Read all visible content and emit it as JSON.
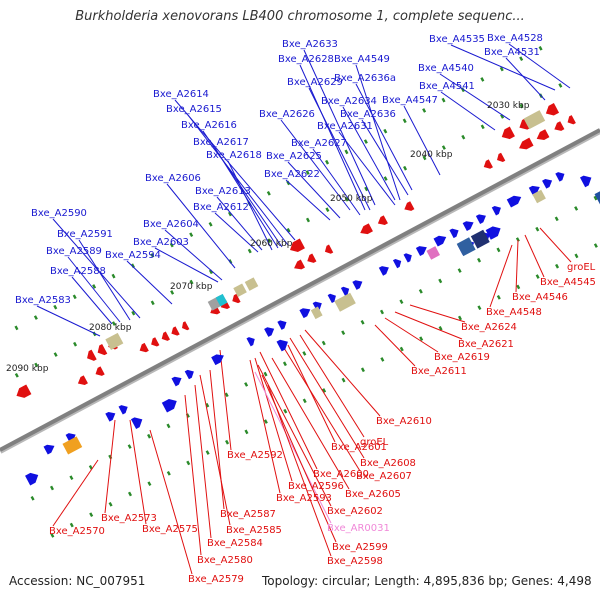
{
  "title": "Burkholderia xenovorans LB400 chromosome 1, complete sequenc...",
  "footer": {
    "accession": "Accession: NC_007951",
    "topology": "Topology: circular; Length: 4,895,836 bp; Genes: 4,498"
  },
  "colors": {
    "forward": "#1010e0",
    "reverse": "#e01010",
    "rrna": "#c8c090",
    "ncrna": "#e070c0",
    "backbone": "#808080",
    "tick": "#2a8a2a"
  },
  "kbp_labels": [
    "2030 kbp",
    "2040 kbp",
    "2050 kbp",
    "2060 kbp",
    "2070 kbp",
    "2080 kbp",
    "2090 kbp"
  ],
  "top_labels": [
    "Bxe_A4535",
    "Bxe_A4528",
    "Bxe_A4531",
    "Bxe_A2633",
    "Bxe_A2628",
    "Bxe_A4549",
    "Bxe_A4540",
    "Bxe_A2629",
    "Bxe_A2636a",
    "Bxe_A4541",
    "Bxe_A2614",
    "Bxe_A4547",
    "Bxe_A2634",
    "Bxe_A2615",
    "Bxe_A2626",
    "Bxe_A2636",
    "Bxe_A2616",
    "Bxe_A2631",
    "Bxe_A2617",
    "Bxe_A2627",
    "Bxe_A2618",
    "Bxe_A2625",
    "Bxe_A2606",
    "Bxe_A2622",
    "Bxe_A2613",
    "Bxe_A2612",
    "Bxe_A2590",
    "Bxe_A2604",
    "Bxe_A2591",
    "Bxe_A2603",
    "Bxe_A2589",
    "Bxe_A2594",
    "Bxe_A2588",
    "Bxe_A2583"
  ],
  "bottom_labels": [
    "groEL",
    "Bxe_A4545",
    "Bxe_A4546",
    "Bxe_A4548",
    "Bxe_A2624",
    "Bxe_A2621",
    "Bxe_A2619",
    "Bxe_A2611",
    "Bxe_A2610",
    "groEL",
    "Bxe_A2608",
    "Bxe_A2592",
    "Bxe_A2601",
    "Bxe_A2607",
    "Bxe_A2600",
    "Bxe_A2605",
    "Bxe_A2596",
    "Bxe_A2593",
    "Bxe_A2602",
    "Bxe_A2587",
    "Bxe_AR0031",
    "Bxe_A2573",
    "Bxe_A2585",
    "Bxe_A2570",
    "Bxe_A2575",
    "Bxe_A2584",
    "Bxe_A2599",
    "Bxe_A2580",
    "Bxe_A2598",
    "Bxe_A2579"
  ]
}
